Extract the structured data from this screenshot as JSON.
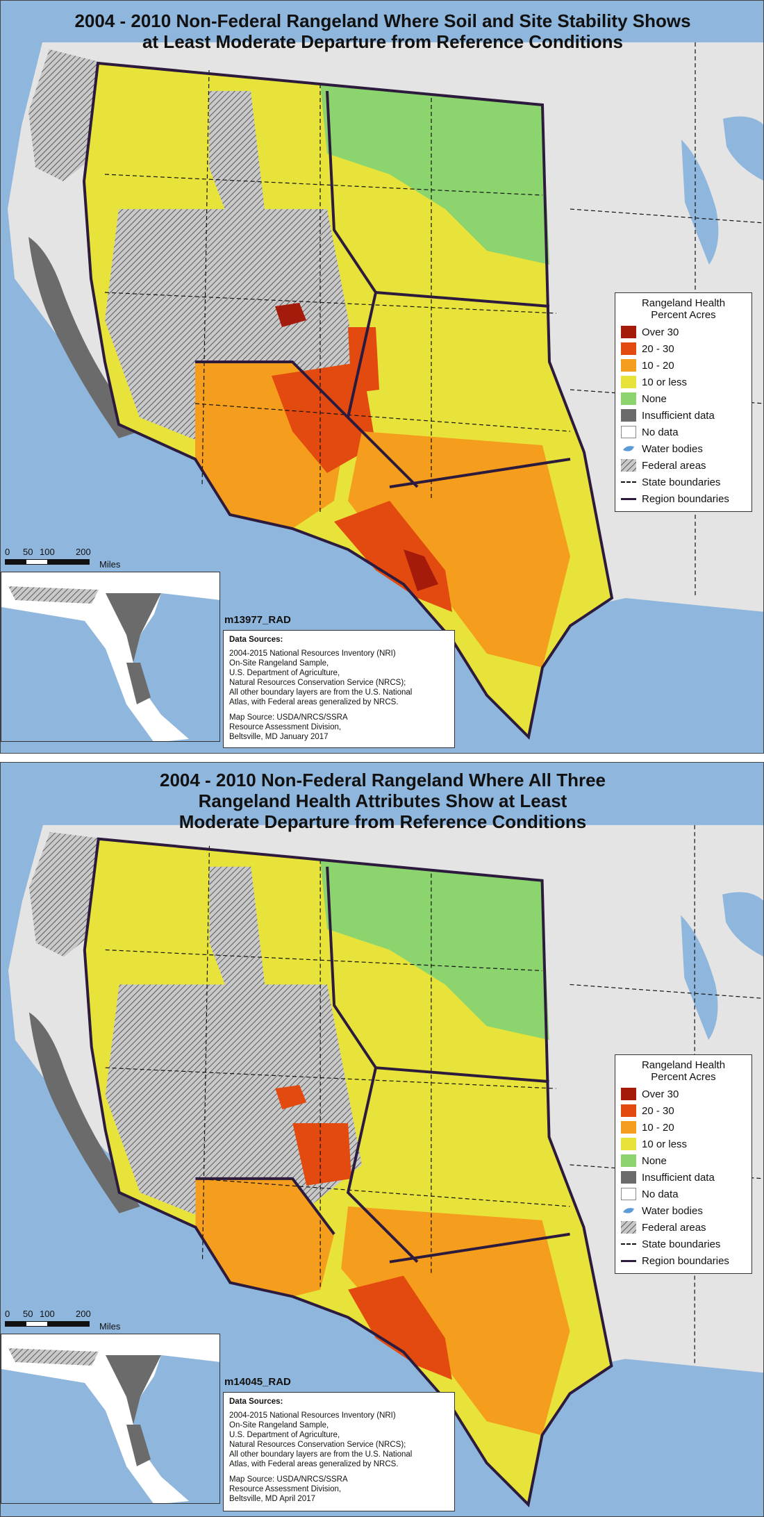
{
  "colors": {
    "water": "#8fb6dc",
    "land_bg": "#e4e4e4",
    "over30": "#a51b0b",
    "c20_30": "#e34a0f",
    "c10_20": "#f59d1c",
    "c10less": "#e8e33a",
    "none": "#8cd46e",
    "insufficient": "#6b6b6b",
    "nodata": "#ffffff",
    "federal": "#b3b3b3",
    "region_line": "#2d1b3d"
  },
  "legend": {
    "heading_line1": "Rangeland Health",
    "heading_line2": "Percent Acres",
    "items": [
      {
        "label": "Over 30",
        "swatch": "#a51b0b"
      },
      {
        "label": "20 - 30",
        "swatch": "#e34a0f"
      },
      {
        "label": "10 - 20",
        "swatch": "#f59d1c"
      },
      {
        "label": "10 or less",
        "swatch": "#e8e33a"
      },
      {
        "label": "None",
        "swatch": "#8cd46e"
      },
      {
        "label": "Insufficient data",
        "swatch": "#6b6b6b"
      },
      {
        "label": "No data",
        "swatch": "#ffffff"
      },
      {
        "label": "Water bodies",
        "swatch": "#8fb6dc"
      },
      {
        "label": "Federal areas",
        "swatch": "#b3b3b3"
      },
      {
        "label": "State boundaries",
        "swatch": "dash"
      },
      {
        "label": "Region boundaries",
        "swatch": "#2d1b3d"
      }
    ]
  },
  "scale": {
    "ticks": [
      "0",
      "50",
      "100",
      "200"
    ],
    "unit": "Miles"
  },
  "maps": [
    {
      "title_lines": [
        "2004 - 2010 Non-Federal Rangeland Where Soil and Site Stability Shows",
        "at Least Moderate Departure from Reference Conditions"
      ],
      "map_id": "m13977_RAD",
      "sources": {
        "label": "Data Sources:",
        "lines": [
          "2004-2015 National Resources Inventory (NRI)",
          "On-Site Rangeland Sample,",
          "U.S. Department of Agriculture,",
          "Natural Resources Conservation Service (NRCS);",
          "All other boundary layers are from the U.S. National",
          "Atlas, with Federal areas generalized by NRCS."
        ],
        "map_source_lines": [
          "Map Source:  USDA/NRCS/SSRA",
          "Resource Assessment Division,",
          "Beltsville, MD     January 2017"
        ]
      }
    },
    {
      "title_lines": [
        "2004 - 2010 Non-Federal Rangeland Where All Three",
        "Rangeland Health Attributes Show at Least",
        "Moderate Departure from Reference Conditions"
      ],
      "map_id": "m14045_RAD",
      "sources": {
        "label": "Data Sources:",
        "lines": [
          "2004-2015 National Resources Inventory (NRI)",
          "On-Site Rangeland Sample,",
          "U.S. Department of Agriculture,",
          "Natural Resources Conservation Service (NRCS);",
          "All other boundary layers are from the U.S. National",
          "Atlas, with Federal areas generalized by NRCS."
        ],
        "map_source_lines": [
          "Map Source:  USDA/NRCS/SSRA",
          "Resource Assessment Division,",
          "Beltsville, MD     April 2017"
        ]
      }
    }
  ]
}
